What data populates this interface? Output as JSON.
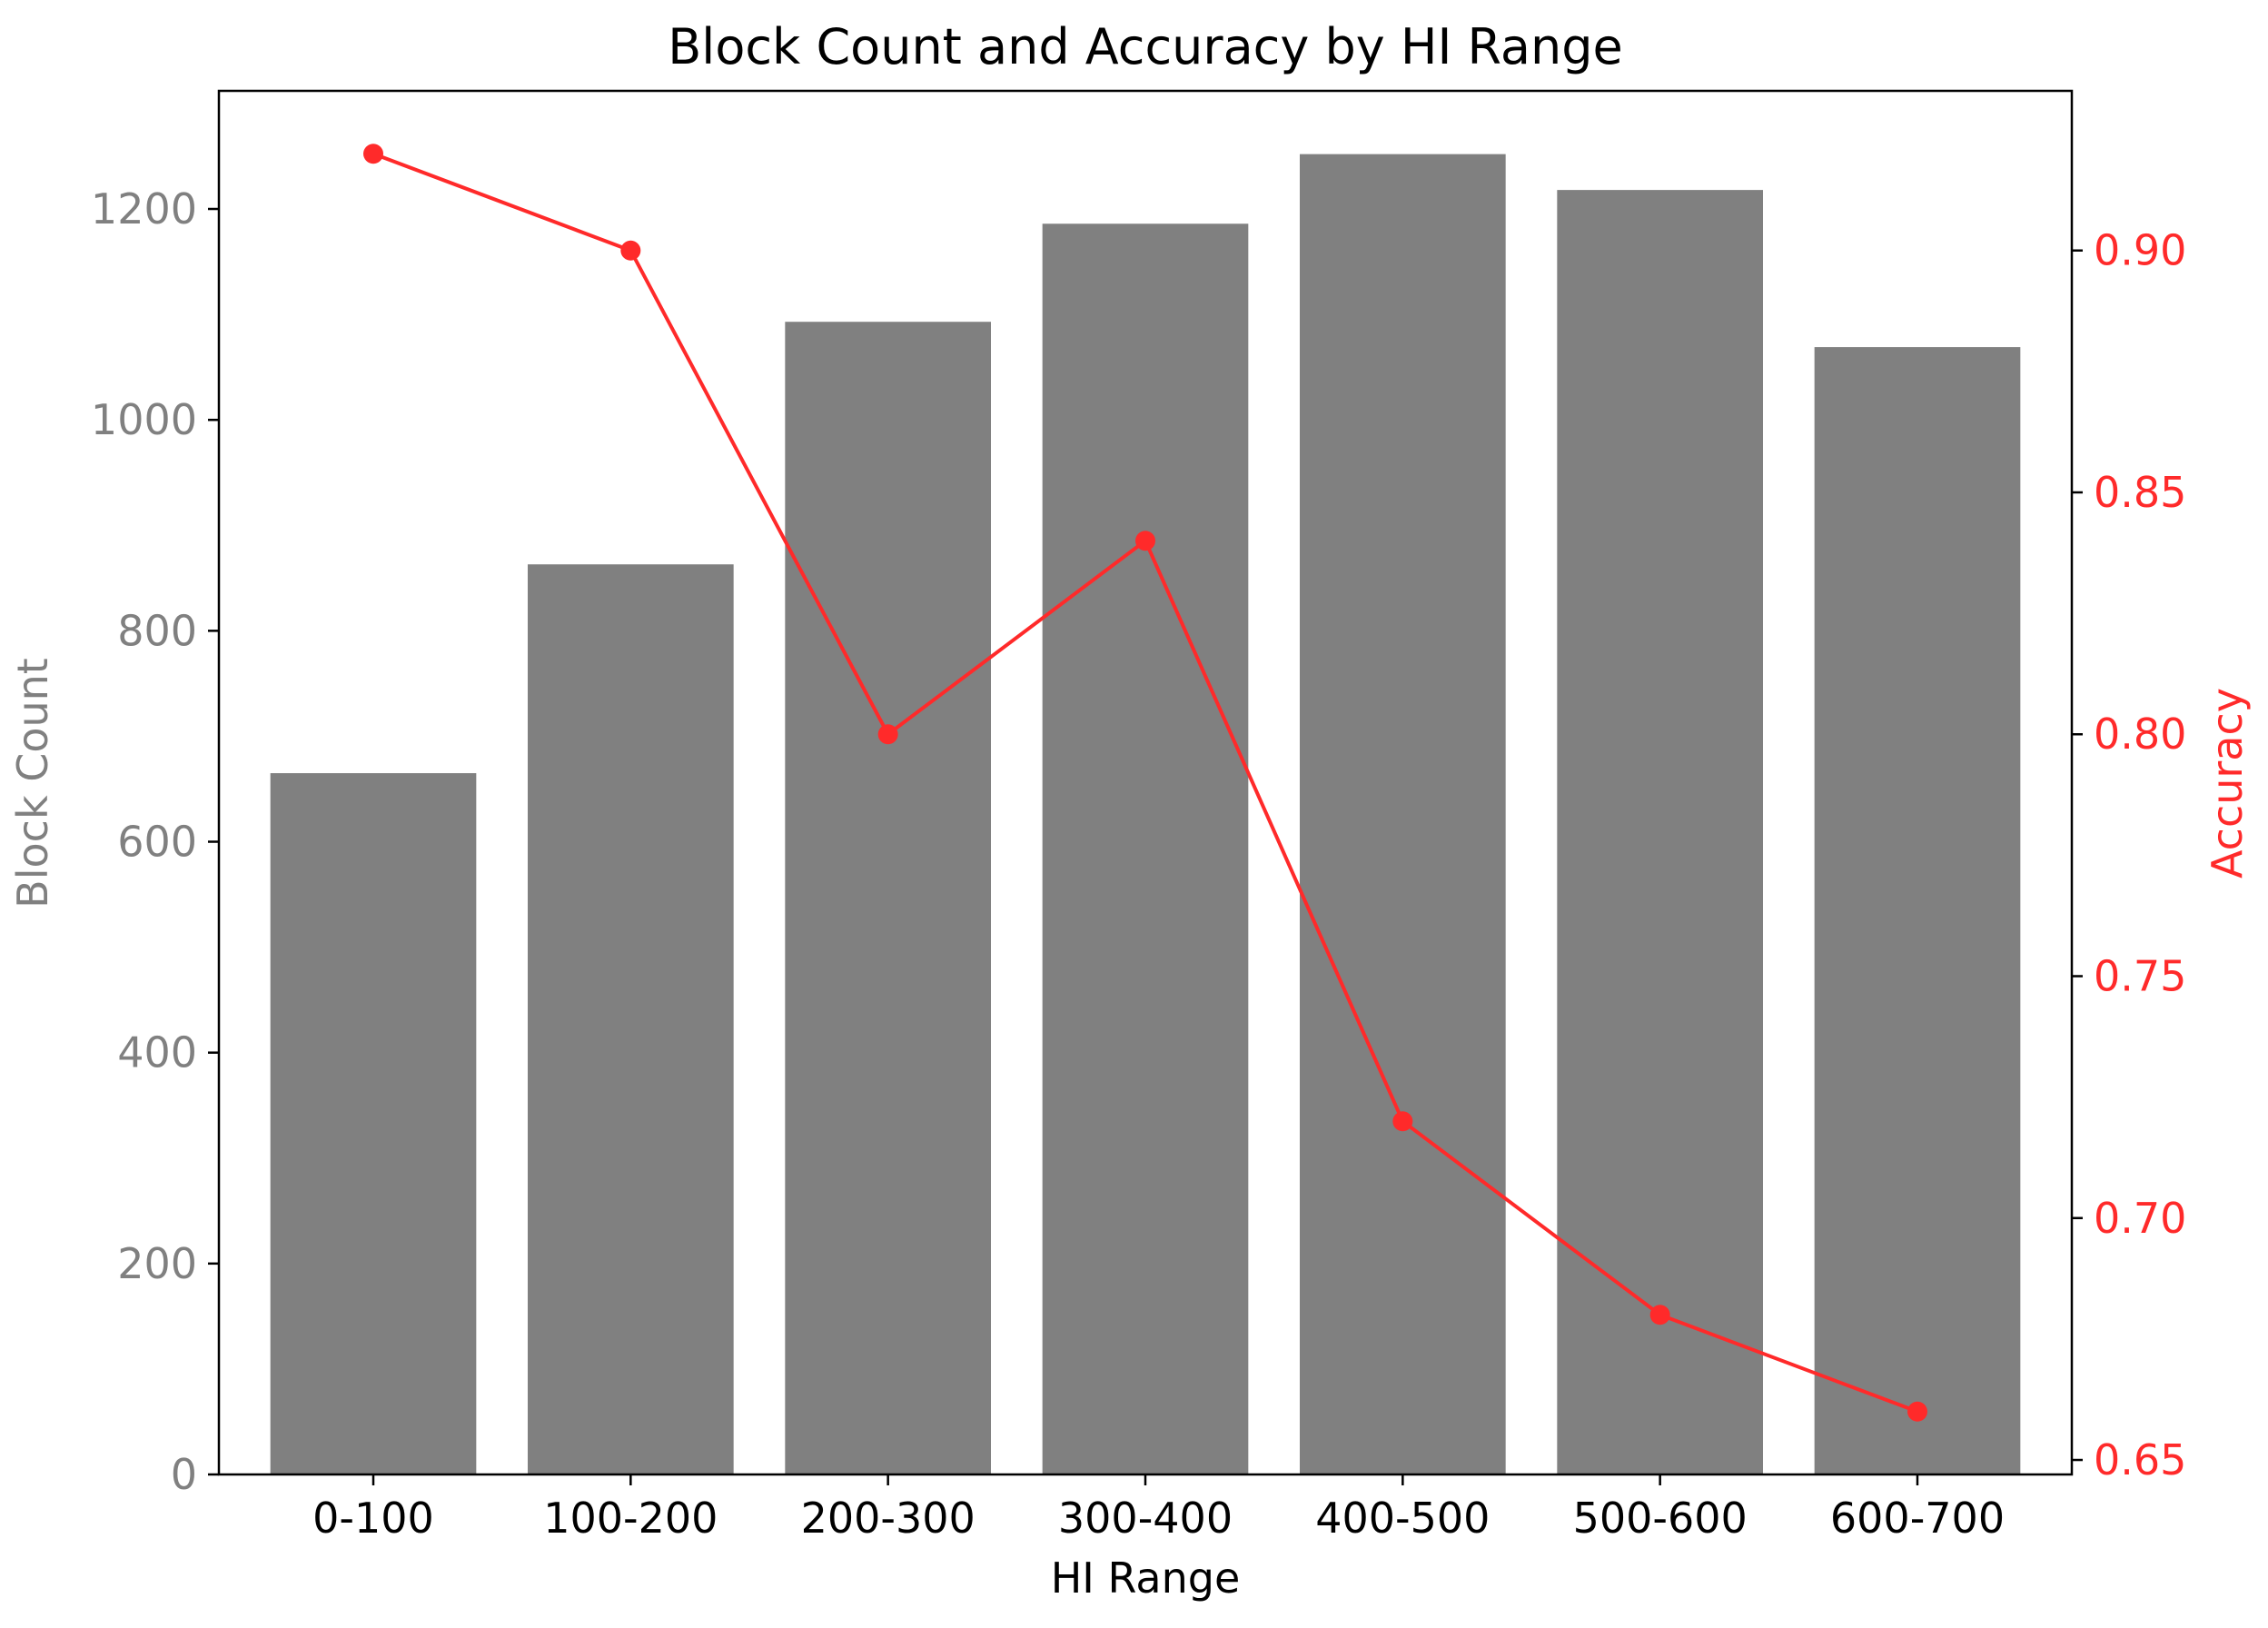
{
  "chart_data": {
    "type": "bar",
    "title": "Block Count and Accuracy by HI Range",
    "xlabel": "HI Range",
    "categories": [
      "0-100",
      "100-200",
      "200-300",
      "300-400",
      "400-500",
      "500-600",
      "600-700"
    ],
    "series": [
      {
        "type": "bar",
        "axis": "left",
        "values": [
          665,
          863,
          1093,
          1186,
          1252,
          1218,
          1069
        ],
        "color": "#808080"
      },
      {
        "type": "line",
        "axis": "right",
        "values": [
          0.92,
          0.9,
          0.8,
          0.84,
          0.72,
          0.68,
          0.66
        ],
        "color": "#ff2a2a",
        "marker": "circle"
      }
    ],
    "y_left": {
      "label": "Block Count",
      "ylim": [
        0,
        1312
      ],
      "ticks": [
        0,
        200,
        400,
        600,
        800,
        1000,
        1200
      ],
      "tick_labels": [
        "0",
        "200",
        "400",
        "600",
        "800",
        "1000",
        "1200"
      ],
      "color": "#808080"
    },
    "y_right": {
      "label": "Accuracy",
      "ylim": [
        0.647,
        0.933
      ],
      "ticks": [
        0.65,
        0.7,
        0.75,
        0.8,
        0.85,
        0.9
      ],
      "tick_labels": [
        "0.65",
        "0.70",
        "0.75",
        "0.80",
        "0.85",
        "0.90"
      ],
      "color": "#ff2a2a"
    },
    "grid": false,
    "legend": "none"
  }
}
